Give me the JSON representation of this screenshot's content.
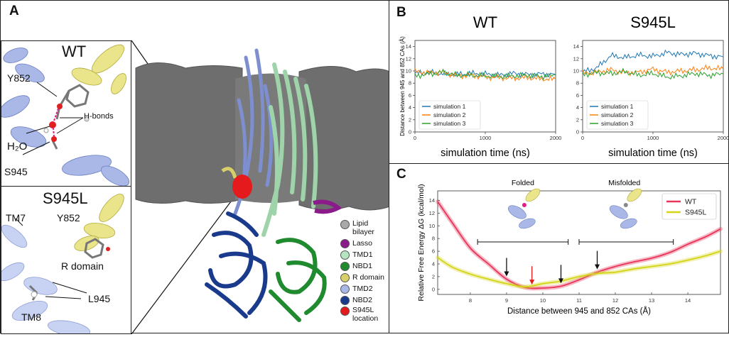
{
  "panelA": {
    "label": "A",
    "inset_wt": {
      "title": "WT",
      "labels": [
        "Y852",
        "H-bonds",
        "H₂O",
        "S945"
      ]
    },
    "inset_mut": {
      "title": "S945L",
      "labels": [
        "TM7",
        "Y852",
        "R domain",
        "L945",
        "TM8"
      ]
    },
    "legend": [
      {
        "label": "Lipid bilayer",
        "color": "#a9a9a9"
      },
      {
        "label": "Lasso",
        "color": "#8b1a8b"
      },
      {
        "label": "TMD1",
        "color": "#b7e4c0"
      },
      {
        "label": "NBD1",
        "color": "#1f8a2e"
      },
      {
        "label": "R domain",
        "color": "#d9cf6a"
      },
      {
        "label": "TMD2",
        "color": "#a9b7e6"
      },
      {
        "label": "NBD2",
        "color": "#1a3a8c"
      },
      {
        "label": "S945L location",
        "color": "#e41a1c"
      }
    ]
  },
  "panelB": {
    "label": "B",
    "ylabel": "Distance  between 945 and 852 CAs (Å)",
    "xlabel": "simulation time (ns)",
    "series_names": [
      "simulation 1",
      "simulation 2",
      "simulation 3"
    ],
    "series_colors": [
      "#1f77b4",
      "#ff7f0e",
      "#2ca02c"
    ]
  },
  "panelC": {
    "label": "C",
    "folded_label": "Folded",
    "misfolded_label": "Misfolded",
    "legend": [
      {
        "label": "WT",
        "color": "#e8355a"
      },
      {
        "label": "S945L",
        "color": "#d4d419"
      }
    ]
  },
  "chart_data": [
    {
      "type": "line",
      "title": "WT",
      "xlabel": "simulation time (ns)",
      "ylabel": "Distance  between 945 and 852 CAs (Å)",
      "xlim": [
        0,
        2000
      ],
      "ylim": [
        0,
        15
      ],
      "xticks": [
        0,
        1000,
        2000
      ],
      "yticks": [
        0,
        2,
        4,
        6,
        8,
        10,
        12,
        14
      ],
      "legend_position": "bottom-left",
      "x": [
        0,
        200,
        400,
        600,
        800,
        1000,
        1200,
        1400,
        1600,
        1800,
        2000
      ],
      "series": [
        {
          "name": "simulation 1",
          "values": [
            9.6,
            9.8,
            9.5,
            9.4,
            9.6,
            9.5,
            9.3,
            9.6,
            9.4,
            9.5,
            9.4
          ]
        },
        {
          "name": "simulation 2",
          "values": [
            9.9,
            9.7,
            9.8,
            9.2,
            9.3,
            9.0,
            8.9,
            8.8,
            8.9,
            8.7,
            8.6
          ]
        },
        {
          "name": "simulation 3",
          "values": [
            9.2,
            9.5,
            9.8,
            9.3,
            9.3,
            9.2,
            9.1,
            9.2,
            9.3,
            9.1,
            9.3
          ]
        }
      ]
    },
    {
      "type": "line",
      "title": "S945L",
      "xlabel": "simulation time (ns)",
      "xlim": [
        0,
        2000
      ],
      "ylim": [
        0,
        15
      ],
      "xticks": [
        0,
        1000,
        2000
      ],
      "yticks": [
        0,
        2,
        4,
        6,
        8,
        10,
        12,
        14
      ],
      "legend_position": "bottom-left",
      "x": [
        0,
        200,
        400,
        600,
        800,
        1000,
        1200,
        1400,
        1600,
        1800,
        2000
      ],
      "series": [
        {
          "name": "simulation 1",
          "values": [
            9.8,
            10.5,
            12.5,
            12.2,
            12.6,
            12.4,
            13.0,
            12.7,
            12.9,
            12.5,
            12.3
          ]
        },
        {
          "name": "simulation 2",
          "values": [
            9.6,
            9.8,
            10.2,
            9.7,
            9.8,
            10.3,
            9.8,
            10.0,
            10.2,
            10.5,
            10.3
          ]
        },
        {
          "name": "simulation 3",
          "values": [
            9.4,
            9.7,
            9.6,
            9.9,
            9.3,
            9.6,
            9.0,
            9.2,
            9.6,
            9.3,
            9.5
          ]
        }
      ]
    },
    {
      "type": "line",
      "xlabel": "Distance  between 945 and 852 CAs (Å)",
      "ylabel": "Relative Free Energy ΔG (kcal/mol)",
      "xlim": [
        7.1,
        14.9
      ],
      "ylim": [
        -0.8,
        15.5
      ],
      "xticks": [
        8,
        9,
        10,
        11,
        12,
        13,
        14
      ],
      "yticks": [
        0,
        2,
        4,
        6,
        8,
        10,
        12,
        14
      ],
      "legend_position": "top-right",
      "x": [
        7.1,
        7.5,
        8.0,
        8.5,
        9.0,
        9.5,
        10.0,
        10.5,
        11.0,
        11.5,
        12.0,
        12.5,
        13.0,
        13.5,
        14.0,
        14.5,
        14.9
      ],
      "series": [
        {
          "name": "WT",
          "values": [
            13.8,
            10.5,
            6.5,
            4.0,
            1.6,
            0.3,
            0.2,
            0.5,
            1.5,
            2.7,
            3.6,
            4.3,
            4.9,
            5.8,
            7.1,
            8.3,
            9.5
          ]
        },
        {
          "name": "S945L",
          "values": [
            5.0,
            3.5,
            2.4,
            1.6,
            0.9,
            0.4,
            0.9,
            1.3,
            2.0,
            2.5,
            2.7,
            3.2,
            3.6,
            4.0,
            4.6,
            5.3,
            6.0
          ]
        }
      ],
      "arrows": [
        {
          "x": 9.0,
          "color": "black"
        },
        {
          "x": 9.7,
          "color": "red"
        },
        {
          "x": 10.5,
          "color": "black"
        },
        {
          "x": 11.5,
          "color": "black"
        }
      ]
    }
  ]
}
